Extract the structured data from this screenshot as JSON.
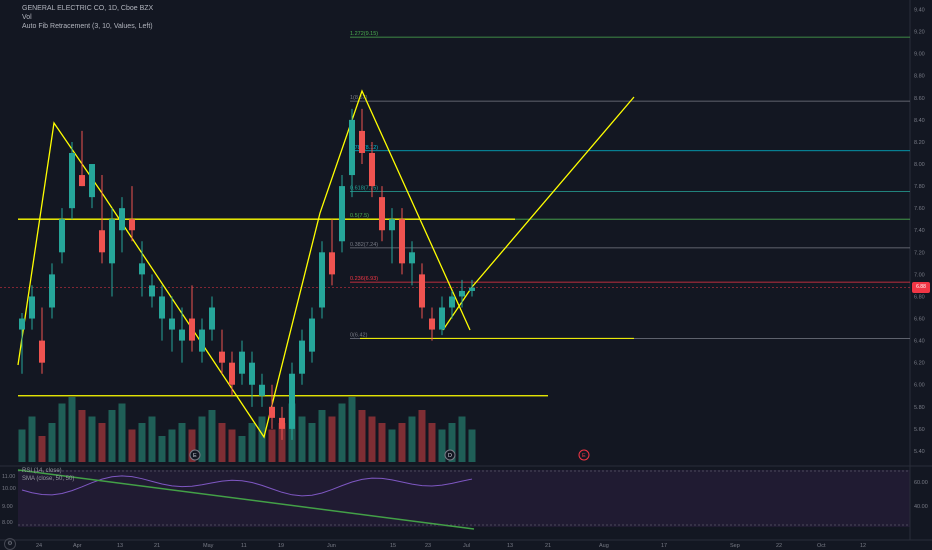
{
  "legend": {
    "symbol": "GENERAL ELECTRIC CO, 1D, Cboe BZX",
    "volume": "Vol",
    "fib": "Auto Fib Retracement (3, 10, Values, Left)"
  },
  "indicators": {
    "rsi": "RSI (14, close)",
    "sma": "SMA (close, 50, 50)",
    "settings": "⚙"
  },
  "price_axis": [
    "9.40",
    "9.20",
    "9.00",
    "8.80",
    "8.60",
    "8.40",
    "8.20",
    "8.00",
    "7.80",
    "7.60",
    "7.40",
    "7.20",
    "7.00",
    "6.80",
    "6.60",
    "6.40",
    "6.20",
    "6.00",
    "5.80",
    "5.60",
    "5.40"
  ],
  "current_price": "6.88",
  "rsi_axis": [
    "60.00",
    "40.00"
  ],
  "left_axis": [
    "11.00",
    "10.00",
    "9.00",
    "8.00"
  ],
  "time_axis": [
    "24",
    "Apr",
    "13",
    "21",
    "May",
    "11",
    "19",
    "Jun",
    "15",
    "23",
    "Jul",
    "13",
    "21",
    "Aug",
    "17",
    "Sep",
    "22",
    "Oct",
    "12"
  ],
  "fib_labels": [
    "1.272(9.15)",
    "1(8.57)",
    "0.786(8.12)",
    "0.618(7.75)",
    "0.5(7.5)",
    "0.382(7.24)",
    "0.236(6.93)",
    "0(6.42)"
  ],
  "event_markers": [
    "E",
    "D",
    "E"
  ],
  "colors": {
    "up": "#26a69a",
    "down": "#ef5350",
    "drawing": "#ffff00",
    "fib": "#787b86",
    "rsi": "#7e57c2",
    "sma": "#43a047"
  },
  "chart_data": {
    "type": "candlestick",
    "ylim": [
      5.3,
      9.45
    ],
    "candles": [
      [
        6.5,
        6.65,
        6.1,
        6.6
      ],
      [
        6.6,
        6.9,
        6.5,
        6.8
      ],
      [
        6.4,
        6.7,
        6.1,
        6.2
      ],
      [
        6.7,
        7.1,
        6.6,
        7.0
      ],
      [
        7.2,
        7.6,
        7.1,
        7.5
      ],
      [
        7.6,
        8.2,
        7.5,
        8.1
      ],
      [
        7.9,
        8.3,
        7.8,
        7.8
      ],
      [
        7.7,
        8.0,
        7.6,
        8.0
      ],
      [
        7.4,
        7.9,
        7.1,
        7.2
      ],
      [
        7.1,
        7.6,
        6.8,
        7.5
      ],
      [
        7.4,
        7.7,
        7.2,
        7.6
      ],
      [
        7.5,
        7.8,
        7.3,
        7.4
      ],
      [
        7.0,
        7.3,
        6.8,
        7.1
      ],
      [
        6.8,
        7.0,
        6.7,
        6.9
      ],
      [
        6.6,
        6.9,
        6.4,
        6.8
      ],
      [
        6.5,
        6.8,
        6.3,
        6.6
      ],
      [
        6.4,
        6.7,
        6.2,
        6.5
      ],
      [
        6.6,
        6.9,
        6.3,
        6.4
      ],
      [
        6.3,
        6.6,
        6.2,
        6.5
      ],
      [
        6.5,
        6.8,
        6.4,
        6.7
      ],
      [
        6.3,
        6.5,
        6.1,
        6.2
      ],
      [
        6.2,
        6.3,
        5.9,
        6.0
      ],
      [
        6.1,
        6.4,
        6.0,
        6.3
      ],
      [
        6.0,
        6.3,
        5.8,
        6.2
      ],
      [
        5.9,
        6.1,
        5.8,
        6.0
      ],
      [
        5.8,
        6.0,
        5.6,
        5.7
      ],
      [
        5.7,
        5.8,
        5.5,
        5.6
      ],
      [
        5.6,
        6.2,
        5.5,
        6.1
      ],
      [
        6.1,
        6.5,
        6.0,
        6.4
      ],
      [
        6.3,
        6.7,
        6.2,
        6.6
      ],
      [
        6.7,
        7.3,
        6.6,
        7.2
      ],
      [
        7.2,
        7.5,
        6.9,
        7.0
      ],
      [
        7.3,
        7.9,
        7.2,
        7.8
      ],
      [
        7.9,
        8.5,
        7.7,
        8.4
      ],
      [
        8.3,
        8.5,
        8.0,
        8.1
      ],
      [
        8.1,
        8.2,
        7.7,
        7.8
      ],
      [
        7.7,
        7.8,
        7.3,
        7.4
      ],
      [
        7.4,
        7.6,
        7.1,
        7.5
      ],
      [
        7.5,
        7.6,
        7.0,
        7.1
      ],
      [
        7.1,
        7.3,
        6.9,
        7.2
      ],
      [
        7.0,
        7.1,
        6.6,
        6.7
      ],
      [
        6.6,
        6.7,
        6.4,
        6.5
      ],
      [
        6.5,
        6.8,
        6.45,
        6.7
      ],
      [
        6.7,
        6.85,
        6.6,
        6.8
      ],
      [
        6.8,
        6.95,
        6.7,
        6.85
      ],
      [
        6.85,
        6.95,
        6.8,
        6.88
      ]
    ],
    "volume": [
      0.5,
      0.7,
      0.4,
      0.6,
      0.9,
      1.0,
      0.8,
      0.7,
      0.6,
      0.8,
      0.9,
      0.5,
      0.6,
      0.7,
      0.4,
      0.5,
      0.6,
      0.5,
      0.7,
      0.8,
      0.6,
      0.5,
      0.4,
      0.6,
      0.7,
      0.5,
      0.6,
      0.9,
      0.7,
      0.6,
      0.8,
      0.7,
      0.9,
      1.0,
      0.8,
      0.7,
      0.6,
      0.5,
      0.6,
      0.7,
      0.8,
      0.6,
      0.5,
      0.6,
      0.7,
      0.5
    ],
    "rsi_axis_range": [
      30,
      70
    ]
  }
}
